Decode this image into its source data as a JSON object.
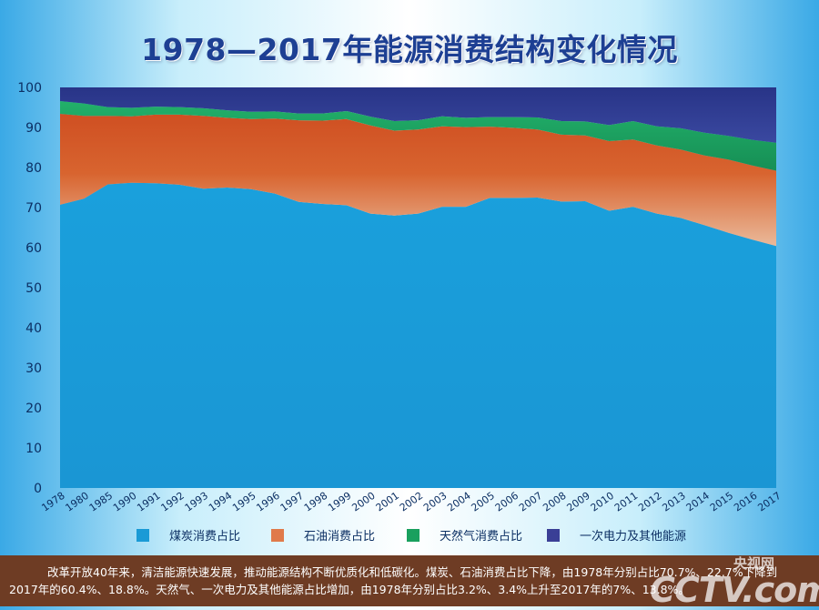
{
  "chart_data": {
    "type": "area",
    "title": "1978—2017年能源消费结构变化情况",
    "xlabel": "",
    "ylabel": "",
    "ylim": [
      0,
      100
    ],
    "yticks": [
      0,
      10,
      20,
      30,
      40,
      50,
      60,
      70,
      80,
      90,
      100
    ],
    "stacked": true,
    "legend_position": "bottom",
    "categories": [
      "1978",
      "1980",
      "1985",
      "1990",
      "1991",
      "1992",
      "1993",
      "1994",
      "1995",
      "1996",
      "1997",
      "1998",
      "1999",
      "2000",
      "2001",
      "2002",
      "2003",
      "2004",
      "2005",
      "2006",
      "2007",
      "2008",
      "2009",
      "2010",
      "2011",
      "2012",
      "2013",
      "2014",
      "2015",
      "2016",
      "2017"
    ],
    "series": [
      {
        "name": "煤炭消费占比",
        "color": "#1a9ad6",
        "values": [
          70.7,
          72.2,
          75.8,
          76.2,
          76.1,
          75.7,
          74.7,
          75.0,
          74.6,
          73.5,
          71.4,
          70.9,
          70.6,
          68.5,
          68.0,
          68.5,
          70.2,
          70.2,
          72.4,
          72.4,
          72.5,
          71.5,
          71.6,
          69.2,
          70.2,
          68.5,
          67.4,
          65.6,
          63.7,
          62.0,
          60.4
        ]
      },
      {
        "name": "石油消费占比",
        "color": "#d5562a",
        "values": [
          22.7,
          20.7,
          17.1,
          16.6,
          17.1,
          17.5,
          18.2,
          17.4,
          17.5,
          18.7,
          20.4,
          20.8,
          21.5,
          22.0,
          21.2,
          21.0,
          20.1,
          19.9,
          17.8,
          17.5,
          17.0,
          16.7,
          16.4,
          17.4,
          16.8,
          17.0,
          17.1,
          17.4,
          18.3,
          18.5,
          18.8
        ]
      },
      {
        "name": "天然气消费占比",
        "color": "#1aa05e",
        "values": [
          3.2,
          3.1,
          2.2,
          2.1,
          2.0,
          1.9,
          1.9,
          1.9,
          1.8,
          1.8,
          1.7,
          1.8,
          2.0,
          2.2,
          2.4,
          2.3,
          2.5,
          2.3,
          2.4,
          2.7,
          3.0,
          3.4,
          3.5,
          4.0,
          4.6,
          4.8,
          5.3,
          5.7,
          5.9,
          6.4,
          7.0
        ]
      },
      {
        "name": "一次电力及其他能源",
        "color": "#2e3a8c",
        "values": [
          3.4,
          4.0,
          4.9,
          5.1,
          4.8,
          4.9,
          5.2,
          5.7,
          6.1,
          6.0,
          6.5,
          6.5,
          5.9,
          7.3,
          8.4,
          8.2,
          7.2,
          7.6,
          7.4,
          7.4,
          7.5,
          8.4,
          8.5,
          9.4,
          8.4,
          9.7,
          10.2,
          11.3,
          12.1,
          13.1,
          13.8
        ]
      }
    ]
  },
  "footer": {
    "line1": "改革开放40年来，清洁能源快速发展，推动能源结构不断优质化和低碳化。煤炭、石油消费占比下降，由1978年分别占比70.7%、22.7%下降到",
    "line2": "2017年的60.4%、18.8%。天然气、一次电力及其他能源占比增加，由1978年分别占比3.2%、3.4%上升至2017年的7%、13.8%。"
  },
  "watermark": {
    "logo": "CCTV.com",
    "site": "央视网"
  }
}
